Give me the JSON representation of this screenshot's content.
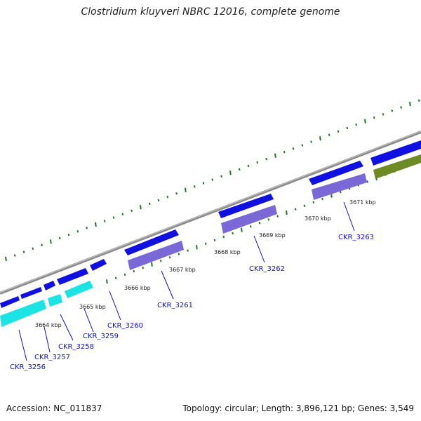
{
  "title": "Clostridium kluyveri NBRC 12016, complete genome",
  "accession": "Accession: NC_011837",
  "summary": "Topology: circular; Length: 3,896,121 bp; Genes: 3,549",
  "colors": {
    "backbone": "#8a8a8a",
    "tick": "#1f7a1f",
    "gene_forward": "#1010e0",
    "gene_feature": "#7a68d6",
    "gene_cyan": "#1ce4e4",
    "gene_olive": "#6e8a24",
    "label": "#1010c8"
  },
  "kbp_labels": [
    "3664 kbp",
    "3665 kbp",
    "3666 kbp",
    "3667 kbp",
    "3668 kbp",
    "3669 kbp",
    "3670 kbp",
    "3671 kbp"
  ],
  "gene_labels": [
    "CKR_3256",
    "CKR_3257",
    "CKR_3258",
    "CKR_3259",
    "CKR_3260",
    "CKR_3261",
    "CKR_3262",
    "CKR_3263"
  ]
}
